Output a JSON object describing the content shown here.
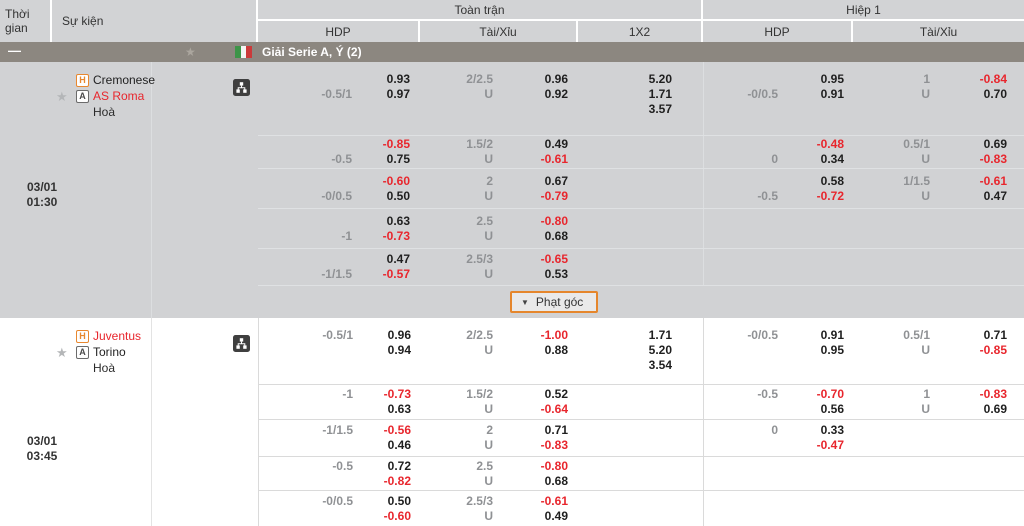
{
  "header": {
    "time_label": "Thời gian",
    "event_label": "Sự kiện",
    "full_time_label": "Toàn trận",
    "first_half_label": "Hiệp 1",
    "hdp_label": "HDP",
    "ou_label": "Tài/Xỉu",
    "x12_label": "1X2"
  },
  "league": {
    "collapse_label": "—",
    "star_icon": "star-icon",
    "flag_icon": "italy-flag-icon",
    "name": "Giải Serie A, Ý (2)"
  },
  "matches": [
    {
      "date": "03/01",
      "kickoff": "01:30",
      "home": {
        "tag": "H",
        "name": "Cremonese",
        "color": "black"
      },
      "away": {
        "tag": "A",
        "name": "AS Roma",
        "color": "red"
      },
      "draw_label": "Hoà",
      "corner_button_label": "Phạt góc",
      "rows": [
        {
          "ft": {
            "hdp": [
              "",
              "-0.5/1"
            ],
            "hdp_odds": [
              "0.93",
              "0.97"
            ],
            "ou": [
              "2/2.5",
              "U"
            ],
            "ou_odds": [
              "0.96",
              "0.92"
            ],
            "x12": [
              "5.20",
              "1.71",
              "3.57"
            ]
          },
          "h1": {
            "hdp": [
              "",
              "-0/0.5"
            ],
            "hdp_odds": [
              "0.95",
              "0.91"
            ],
            "ou": [
              "1",
              "U"
            ],
            "ou_odds": [
              "-0.84",
              "0.70"
            ]
          }
        },
        {
          "ft": {
            "hdp": [
              "",
              "-0.5"
            ],
            "hdp_odds": [
              "-0.85",
              "0.75"
            ],
            "ou": [
              "1.5/2",
              "U"
            ],
            "ou_odds": [
              "0.49",
              "-0.61"
            ],
            "x12": []
          },
          "h1": {
            "hdp": [
              "",
              "0"
            ],
            "hdp_odds": [
              "-0.48",
              "0.34"
            ],
            "ou": [
              "0.5/1",
              "U"
            ],
            "ou_odds": [
              "0.69",
              "-0.83"
            ]
          }
        },
        {
          "ft": {
            "hdp": [
              "",
              "-0/0.5"
            ],
            "hdp_odds": [
              "-0.60",
              "0.50"
            ],
            "ou": [
              "2",
              "U"
            ],
            "ou_odds": [
              "0.67",
              "-0.79"
            ],
            "x12": []
          },
          "h1": {
            "hdp": [
              "",
              "-0.5"
            ],
            "hdp_odds": [
              "0.58",
              "-0.72"
            ],
            "ou": [
              "1/1.5",
              "U"
            ],
            "ou_odds": [
              "-0.61",
              "0.47"
            ]
          }
        },
        {
          "ft": {
            "hdp": [
              "",
              "-1"
            ],
            "hdp_odds": [
              "0.63",
              "-0.73"
            ],
            "ou": [
              "2.5",
              "U"
            ],
            "ou_odds": [
              "-0.80",
              "0.68"
            ],
            "x12": []
          },
          "h1": {
            "hdp": [
              "",
              ""
            ],
            "hdp_odds": [
              "",
              ""
            ],
            "ou": [
              "",
              ""
            ],
            "ou_odds": [
              "",
              ""
            ]
          }
        },
        {
          "ft": {
            "hdp": [
              "",
              "-1/1.5"
            ],
            "hdp_odds": [
              "0.47",
              "-0.57"
            ],
            "ou": [
              "2.5/3",
              "U"
            ],
            "ou_odds": [
              "-0.65",
              "0.53"
            ],
            "x12": []
          },
          "h1": {
            "hdp": [
              "",
              ""
            ],
            "hdp_odds": [
              "",
              ""
            ],
            "ou": [
              "",
              ""
            ],
            "ou_odds": [
              "",
              ""
            ]
          }
        }
      ]
    },
    {
      "date": "03/01",
      "kickoff": "03:45",
      "home": {
        "tag": "H",
        "name": "Juventus",
        "color": "red"
      },
      "away": {
        "tag": "A",
        "name": "Torino",
        "color": "black"
      },
      "draw_label": "Hoà",
      "corner_button_label": "",
      "rows": [
        {
          "ft": {
            "hdp": [
              "-0.5/1",
              ""
            ],
            "hdp_odds": [
              "0.96",
              "0.94"
            ],
            "ou": [
              "2/2.5",
              "U"
            ],
            "ou_odds": [
              "-1.00",
              "0.88"
            ],
            "x12": [
              "1.71",
              "5.20",
              "3.54"
            ]
          },
          "h1": {
            "hdp": [
              "-0/0.5",
              ""
            ],
            "hdp_odds": [
              "0.91",
              "0.95"
            ],
            "ou": [
              "0.5/1",
              "U"
            ],
            "ou_odds": [
              "0.71",
              "-0.85"
            ]
          }
        },
        {
          "ft": {
            "hdp": [
              "-1",
              ""
            ],
            "hdp_odds": [
              "-0.73",
              "0.63"
            ],
            "ou": [
              "1.5/2",
              "U"
            ],
            "ou_odds": [
              "0.52",
              "-0.64"
            ],
            "x12": []
          },
          "h1": {
            "hdp": [
              "-0.5",
              ""
            ],
            "hdp_odds": [
              "-0.70",
              "0.56"
            ],
            "ou": [
              "1",
              "U"
            ],
            "ou_odds": [
              "-0.83",
              "0.69"
            ]
          }
        },
        {
          "ft": {
            "hdp": [
              "-1/1.5",
              ""
            ],
            "hdp_odds": [
              "-0.56",
              "0.46"
            ],
            "ou": [
              "2",
              "U"
            ],
            "ou_odds": [
              "0.71",
              "-0.83"
            ],
            "x12": []
          },
          "h1": {
            "hdp": [
              "0",
              ""
            ],
            "hdp_odds": [
              "0.33",
              "-0.47"
            ],
            "ou": [
              "",
              ""
            ],
            "ou_odds": [
              "",
              ""
            ]
          }
        },
        {
          "ft": {
            "hdp": [
              "-0.5",
              ""
            ],
            "hdp_odds": [
              "0.72",
              "-0.82"
            ],
            "ou": [
              "2.5",
              "U"
            ],
            "ou_odds": [
              "-0.80",
              "0.68"
            ],
            "x12": []
          },
          "h1": {
            "hdp": [
              "",
              ""
            ],
            "hdp_odds": [
              "",
              ""
            ],
            "ou": [
              "",
              ""
            ],
            "ou_odds": [
              "",
              ""
            ]
          }
        },
        {
          "ft": {
            "hdp": [
              "-0/0.5",
              ""
            ],
            "hdp_odds": [
              "0.50",
              "-0.60"
            ],
            "ou": [
              "2.5/3",
              "U"
            ],
            "ou_odds": [
              "-0.61",
              "0.49"
            ],
            "x12": []
          },
          "h1": {
            "hdp": [
              "",
              ""
            ],
            "hdp_odds": [
              "",
              ""
            ],
            "ou": [
              "",
              ""
            ],
            "ou_odds": [
              "",
              ""
            ]
          }
        }
      ]
    }
  ]
}
